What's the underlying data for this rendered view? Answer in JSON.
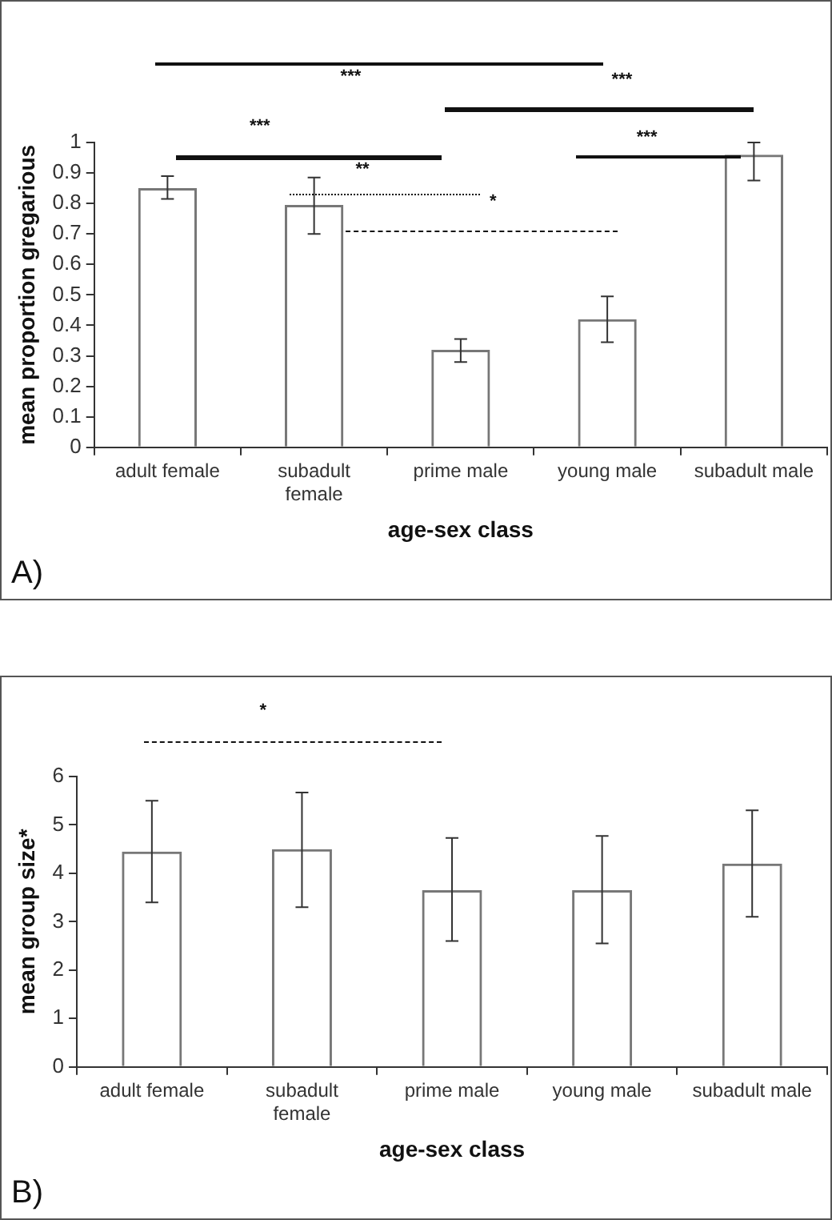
{
  "chart_data": [
    {
      "type": "bar",
      "xlabel": "age-sex class",
      "ylabel": "mean proportion gregarious",
      "categories": [
        "adult female",
        "subadult female",
        "prime male",
        "young male",
        "subadult male"
      ],
      "values": [
        0.85,
        0.795,
        0.32,
        0.42,
        0.96
      ],
      "color": "#777777",
      "errors": [
        [
          0.815,
          0.89
        ],
        [
          0.7,
          0.885
        ],
        [
          0.28,
          0.355
        ],
        [
          0.345,
          0.495
        ],
        [
          0.875,
          1.0
        ]
      ],
      "ylim": [
        0,
        1
      ],
      "yticks": [
        0,
        0.1,
        0.2,
        0.3,
        0.4,
        0.5,
        0.6,
        0.7,
        0.8,
        0.9,
        1
      ],
      "grid": false,
      "legend": false,
      "annotations": [
        "***",
        "***",
        "***",
        "**",
        "*",
        "***",
        "A)"
      ]
    },
    {
      "type": "bar",
      "xlabel": "age-sex class",
      "ylabel": "mean group size*",
      "categories": [
        "adult female",
        "subadult female",
        "prime male",
        "young male",
        "subadult male"
      ],
      "values": [
        4.45,
        4.5,
        3.65,
        3.65,
        4.2
      ],
      "color": "#777777",
      "errors": [
        [
          3.4,
          5.5
        ],
        [
          3.3,
          5.67
        ],
        [
          2.6,
          4.73
        ],
        [
          2.55,
          4.77
        ],
        [
          3.1,
          5.3
        ]
      ],
      "ylim": [
        0,
        6
      ],
      "yticks": [
        0,
        1,
        2,
        3,
        4,
        5,
        6
      ],
      "grid": false,
      "legend": false,
      "annotations": [
        "*",
        "B)"
      ]
    }
  ]
}
